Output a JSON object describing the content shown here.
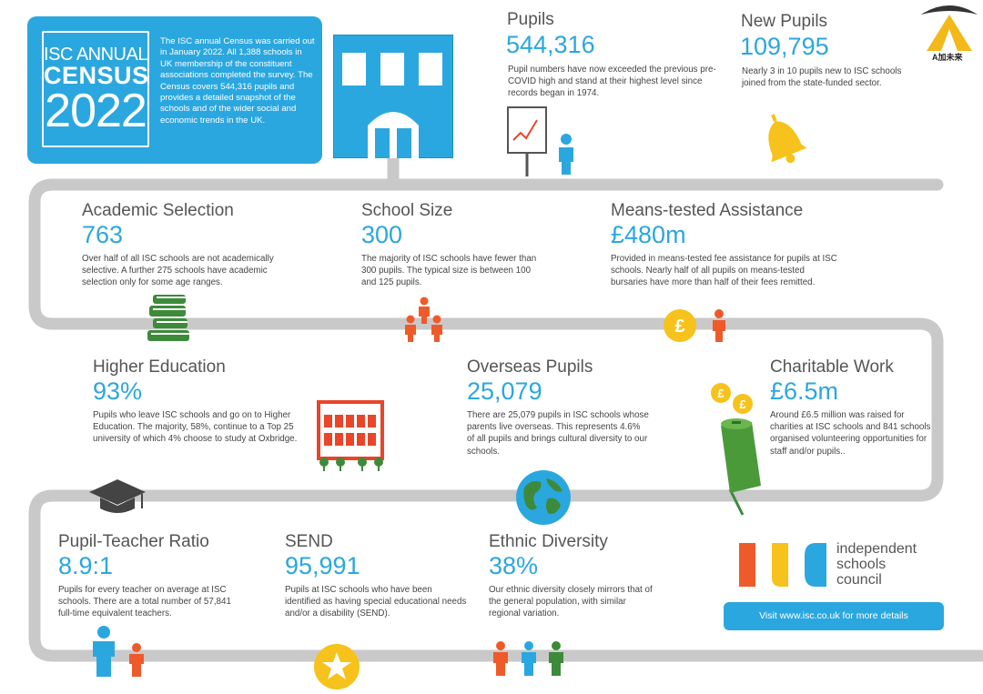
{
  "hero": {
    "line1": "ISC ANNUAL",
    "line2": "CENSUS",
    "line3": "2022",
    "text": "The ISC annual Census was carried out in January 2022. All 1,388 schools in UK membership of the constituent associations completed the survey. The Census covers 544,316 pupils and provides a detailed snapshot of the schools and of the wider social and economic trends in the UK."
  },
  "stats": {
    "pupils": {
      "title": "Pupils",
      "value": "544,316",
      "desc": "Pupil numbers have now exceeded the previous pre-COVID high and stand at their highest level since records began in 1974."
    },
    "new_pupils": {
      "title": "New Pupils",
      "value": "109,795",
      "desc": "Nearly 3 in 10 pupils new to ISC schools joined from the state-funded sector."
    },
    "academic": {
      "title": "Academic Selection",
      "value": "763",
      "desc": "Over half of all ISC schools are not academically selective. A further 275 schools have academic selection only for some age ranges."
    },
    "size": {
      "title": "School Size",
      "value": "300",
      "desc": "The majority of ISC schools have fewer than 300 pupils. The typical size is between 100 and 125 pupils."
    },
    "means": {
      "title": "Means-tested Assistance",
      "value": "£480m",
      "desc": "Provided in means-tested fee assistance for pupils at ISC schools. Nearly half of all pupils on means-tested bursaries have more than half of their fees remitted."
    },
    "higher": {
      "title": "Higher Education",
      "value": "93%",
      "desc": "Pupils who leave ISC schools and go on to Higher Education. The majority, 58%, continue to a Top 25 university of which 4% choose to study at Oxbridge."
    },
    "overseas": {
      "title": "Overseas Pupils",
      "value": "25,079",
      "desc": "There are 25,079 pupils in ISC schools whose parents live overseas. This represents 4.6% of all pupils and brings cultural diversity to our schools."
    },
    "charity": {
      "title": "Charitable Work",
      "value": "£6.5m",
      "desc": "Around £6.5 million was raised for charities at ISC schools and 841 schools organised volunteering opportunities for staff and/or pupils.."
    },
    "ratio": {
      "title": "Pupil-Teacher Ratio",
      "value": "8.9:1",
      "desc": "Pupils for every teacher on average at ISC schools. There are a total number of 57,841 full-time equivalent teachers."
    },
    "send": {
      "title": "SEND",
      "value": "95,991",
      "desc": "Pupils at ISC schools who have been identified as having special educational needs and/or a disability (SEND)."
    },
    "ethnic": {
      "title": "Ethnic Diversity",
      "value": "38%",
      "desc": "Our ethnic diversity closely mirrors that of the general population, with similar regional variation."
    }
  },
  "isc": {
    "line1": "independent",
    "line2": "schools",
    "line3": "council"
  },
  "link_text": "Visit www.isc.co.uk for more details",
  "watermark": {
    "text": "A加未来"
  },
  "colors": {
    "blue": "#2ba7df",
    "orange": "#ef5a2a",
    "yellow": "#f6c21b",
    "green": "#3d8a3b",
    "grey": "#c9c9c9"
  },
  "icons": [
    "school-building-icon",
    "chart-easel-icon",
    "child-icon",
    "bell-icon",
    "books-icon",
    "family-icon",
    "pound-coin-icon",
    "university-building-icon",
    "globe-icon",
    "collection-tin-icon",
    "graduation-cap-icon",
    "star-badge-icon"
  ]
}
